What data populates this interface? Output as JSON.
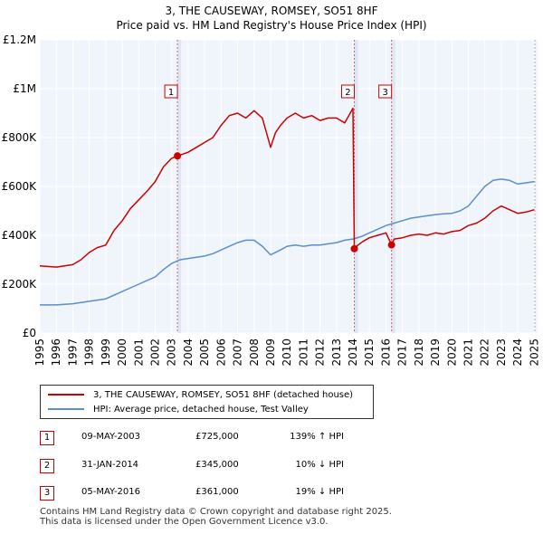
{
  "chart_data": {
    "type": "line",
    "title": "3, THE CAUSEWAY, ROMSEY, SO51 8HF",
    "subtitle": "Price paid vs. HM Land Registry's House Price Index (HPI)",
    "xlim": [
      1995,
      2025.2
    ],
    "ylim": [
      0,
      1200000
    ],
    "y_ticks": [
      {
        "value": 0,
        "label": "£0"
      },
      {
        "value": 200000,
        "label": "£200K"
      },
      {
        "value": 400000,
        "label": "£400K"
      },
      {
        "value": 600000,
        "label": "£600K"
      },
      {
        "value": 800000,
        "label": "£800K"
      },
      {
        "value": 1000000,
        "label": "£1M"
      },
      {
        "value": 1200000,
        "label": "£1.2M"
      }
    ],
    "x_ticks": [
      "1995",
      "1996",
      "1997",
      "1998",
      "1999",
      "2000",
      "2001",
      "2002",
      "2003",
      "2004",
      "2005",
      "2006",
      "2007",
      "2008",
      "2009",
      "2010",
      "2011",
      "2012",
      "2013",
      "2014",
      "2015",
      "2016",
      "2017",
      "2018",
      "2019",
      "2020",
      "2021",
      "2022",
      "2023",
      "2024",
      "2025"
    ],
    "grid": true,
    "series": [
      {
        "name": "3, THE CAUSEWAY, ROMSEY, SO51 8HF (detached house)",
        "color": "#cc0000",
        "x": [
          1995.0,
          1996.0,
          1997.0,
          1997.5,
          1998.0,
          1998.5,
          1999.0,
          1999.5,
          2000.0,
          2000.5,
          2001.0,
          2001.5,
          2002.0,
          2002.5,
          2003.0,
          2003.35,
          2004.0,
          2004.5,
          2005.0,
          2005.5,
          2006.0,
          2006.5,
          2007.0,
          2007.5,
          2008.0,
          2008.5,
          2009.0,
          2009.3,
          2009.6,
          2010.0,
          2010.5,
          2011.0,
          2011.5,
          2012.0,
          2012.5,
          2013.0,
          2013.5,
          2014.0,
          2014.08,
          2014.3,
          2014.6,
          2015.0,
          2015.5,
          2016.0,
          2016.34,
          2016.5,
          2017.0,
          2017.5,
          2018.0,
          2018.5,
          2019.0,
          2019.5,
          2020.0,
          2020.5,
          2021.0,
          2021.5,
          2022.0,
          2022.5,
          2023.0,
          2023.5,
          2024.0,
          2024.5,
          2025.0
        ],
        "y": [
          275000,
          270000,
          280000,
          300000,
          330000,
          350000,
          360000,
          420000,
          460000,
          510000,
          545000,
          580000,
          620000,
          680000,
          715000,
          725000,
          740000,
          760000,
          780000,
          800000,
          850000,
          890000,
          900000,
          880000,
          910000,
          880000,
          760000,
          820000,
          850000,
          880000,
          900000,
          880000,
          890000,
          870000,
          880000,
          880000,
          860000,
          920000,
          345000,
          360000,
          375000,
          390000,
          400000,
          410000,
          361000,
          385000,
          390000,
          400000,
          405000,
          400000,
          410000,
          405000,
          415000,
          420000,
          440000,
          450000,
          470000,
          500000,
          520000,
          505000,
          490000,
          495000,
          505000
        ]
      },
      {
        "name": "HPI: Average price, detached house, Test Valley",
        "color": "#5b8fc9",
        "x": [
          1995.0,
          1996.0,
          1997.0,
          1998.0,
          1999.0,
          2000.0,
          2001.0,
          2002.0,
          2002.5,
          2003.0,
          2003.5,
          2004.0,
          2004.5,
          2005.0,
          2005.5,
          2006.0,
          2006.5,
          2007.0,
          2007.5,
          2008.0,
          2008.5,
          2009.0,
          2009.3,
          2009.6,
          2010.0,
          2010.5,
          2011.0,
          2011.5,
          2012.0,
          2012.5,
          2013.0,
          2013.5,
          2014.0,
          2014.5,
          2015.0,
          2015.5,
          2016.0,
          2016.5,
          2017.0,
          2017.5,
          2018.0,
          2018.5,
          2019.0,
          2019.5,
          2020.0,
          2020.5,
          2021.0,
          2021.5,
          2022.0,
          2022.5,
          2023.0,
          2023.5,
          2024.0,
          2024.5,
          2025.0
        ],
        "y": [
          115000,
          115000,
          120000,
          130000,
          140000,
          170000,
          200000,
          230000,
          260000,
          285000,
          300000,
          305000,
          310000,
          315000,
          325000,
          340000,
          355000,
          370000,
          380000,
          380000,
          355000,
          320000,
          330000,
          340000,
          355000,
          360000,
          355000,
          360000,
          360000,
          365000,
          370000,
          380000,
          385000,
          395000,
          410000,
          425000,
          440000,
          450000,
          460000,
          470000,
          475000,
          480000,
          485000,
          488000,
          490000,
          500000,
          520000,
          560000,
          600000,
          625000,
          630000,
          625000,
          610000,
          615000,
          620000
        ]
      }
    ],
    "sales": [
      {
        "label": "1",
        "date": "09-MAY-2003",
        "x": 2003.35,
        "price": 725000,
        "price_text": "£725,000",
        "hpi": "139% ↑ HPI"
      },
      {
        "label": "2",
        "date": "31-JAN-2014",
        "x": 2014.08,
        "price": 345000,
        "price_text": "£345,000",
        "hpi": "10% ↓ HPI"
      },
      {
        "label": "3",
        "date": "05-MAY-2016",
        "x": 2016.34,
        "price": 361000,
        "price_text": "£361,000",
        "hpi": "19% ↓ HPI"
      }
    ]
  },
  "footer": {
    "line1": "Contains HM Land Registry data © Crown copyright and database right 2025.",
    "line2": "This data is licensed under the Open Government Licence v3.0."
  }
}
